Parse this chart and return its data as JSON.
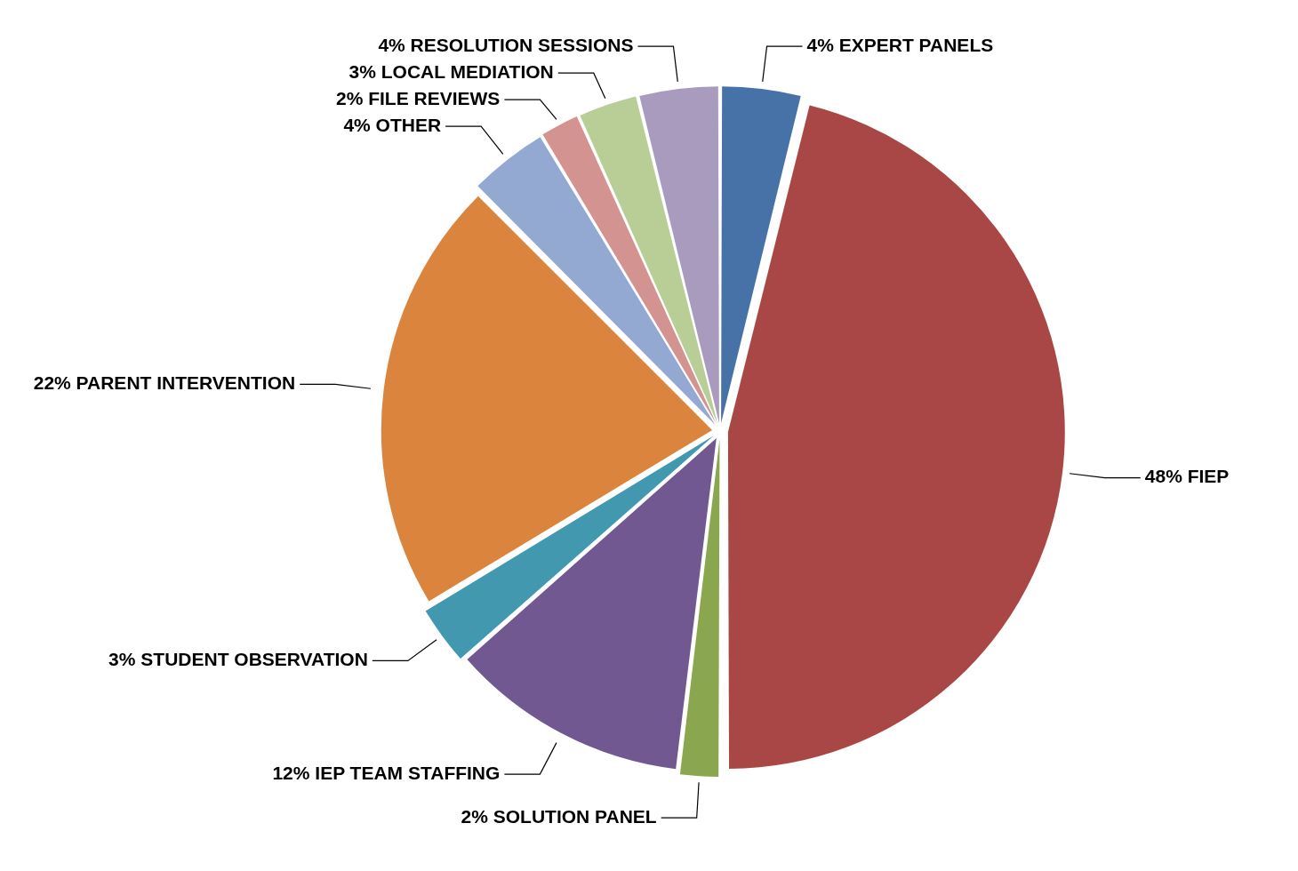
{
  "chart_data": {
    "type": "pie",
    "categories": [
      "EXPERT PANELS",
      "FIEP",
      "SOLUTION PANEL",
      "IEP TEAM STAFFING",
      "STUDENT OBSERVATION",
      "PARENT INTERVENTION",
      "OTHER",
      "FILE REVIEWS",
      "LOCAL MEDIATION",
      "RESOLUTION SESSIONS"
    ],
    "values": [
      4,
      48,
      2,
      12,
      3,
      22,
      4,
      2,
      3,
      4
    ],
    "value_labels": [
      "4%",
      "48%",
      "2%",
      "12%",
      "3%",
      "22%",
      "4%",
      "2%",
      "3%",
      "4%"
    ],
    "colors": [
      "#4672a8",
      "#a84745",
      "#8aa64e",
      "#725890",
      "#4198af",
      "#db843d",
      "#94a9d2",
      "#d29391",
      "#b9cd96",
      "#a99bbd"
    ],
    "legend": false
  }
}
